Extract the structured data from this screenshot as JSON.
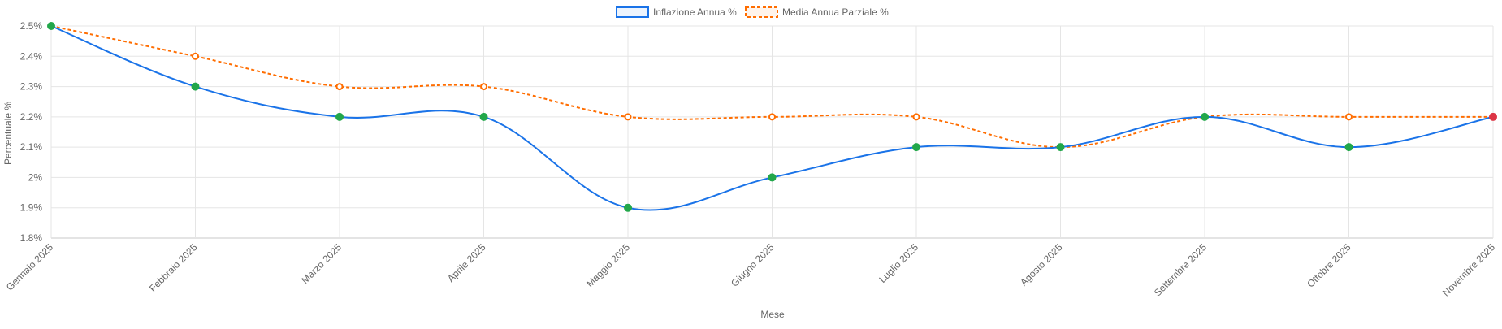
{
  "chart_data": {
    "type": "line",
    "categories": [
      "Gennaio 2025",
      "Febbraio 2025",
      "Marzo 2025",
      "Aprile 2025",
      "Maggio 2025",
      "Giugno 2025",
      "Luglio 2025",
      "Agosto 2025",
      "Settembre 2025",
      "Ottobre 2025",
      "Novembre 2025"
    ],
    "series": [
      {
        "name": "Inflazione Annua %",
        "values": [
          2.5,
          2.3,
          2.2,
          2.2,
          1.9,
          2.0,
          2.1,
          2.1,
          2.2,
          2.1,
          2.2
        ],
        "color": "#1a73e8",
        "point_color": "#22a74a",
        "last_point_color": "#dc3545",
        "style": "solid"
      },
      {
        "name": "Media Annua Parziale %",
        "values": [
          2.5,
          2.4,
          2.3,
          2.3,
          2.2,
          2.2,
          2.2,
          2.1,
          2.2,
          2.2,
          2.2
        ],
        "color": "#ff6d00",
        "point_color": "#ff6d00",
        "style": "dashed"
      }
    ],
    "title": "",
    "xlabel": "Mese",
    "ylabel": "Percentuale %",
    "ylim": [
      1.8,
      2.5
    ],
    "yticks": [
      "2.5%",
      "2.4%",
      "2.3%",
      "2.2%",
      "2.1%",
      "2%",
      "1.9%",
      "1.8%"
    ],
    "grid": true,
    "legend_position": "top-center"
  }
}
